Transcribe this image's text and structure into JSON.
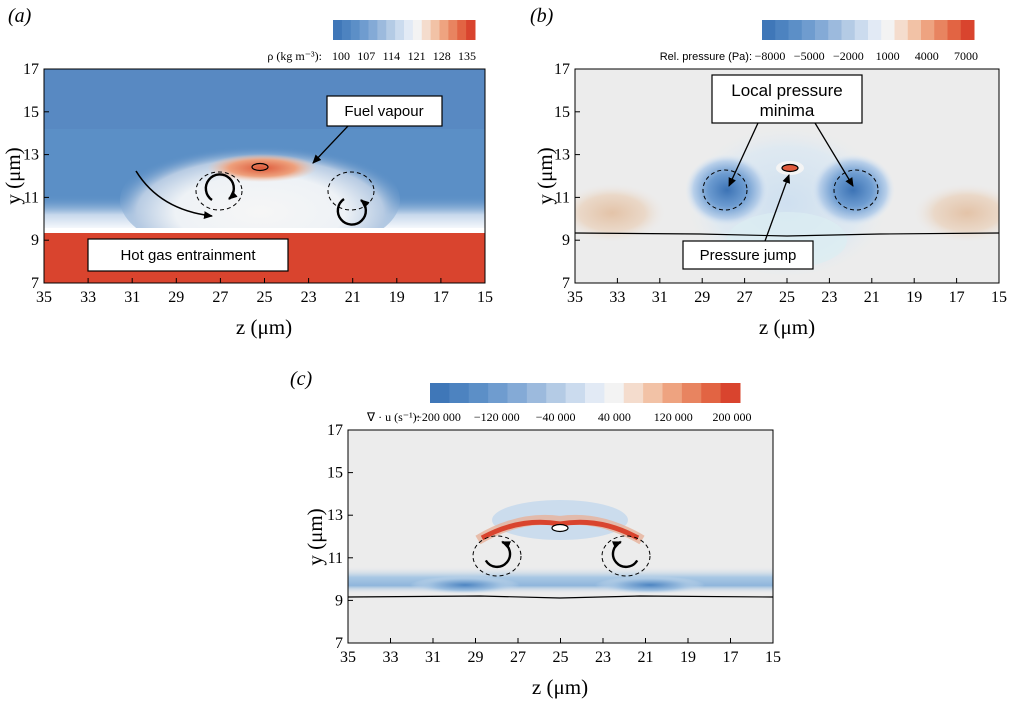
{
  "panels": [
    {
      "label": "(a)",
      "xlabel": "z (μm)",
      "ylabel": "y (μm)",
      "colorbar": {
        "label": "ρ (kg m⁻³):",
        "ticks": [
          "100",
          "107",
          "114",
          "121",
          "128",
          "135"
        ],
        "colors": [
          "#3f77b8",
          "#4d83c0",
          "#5c8fc7",
          "#6f9ccf",
          "#84aad6",
          "#9cbadd",
          "#b4cbe5",
          "#cbdbee",
          "#e2eaf5",
          "#f3f3f3",
          "#f4dccd",
          "#f2c2a6",
          "#eea380",
          "#e88460",
          "#e26443",
          "#d9442e"
        ]
      },
      "annotations": {
        "fuel": "Fuel vapour",
        "hot_gas": "Hot gas entrainment"
      }
    },
    {
      "label": "(b)",
      "xlabel": "z (μm)",
      "ylabel": "y (μm)",
      "colorbar": {
        "label": "Rel. pressure (Pa):",
        "ticks": [
          "−8000",
          "−5000",
          "−2000",
          "1000",
          "4000",
          "7000"
        ],
        "colors": [
          "#3f77b8",
          "#4d83c0",
          "#5c8fc7",
          "#6f9ccf",
          "#84aad6",
          "#9cbadd",
          "#b4cbe5",
          "#cbdbee",
          "#e2eaf5",
          "#f3f3f3",
          "#f4dccd",
          "#f2c2a6",
          "#eea380",
          "#e88460",
          "#e26443",
          "#d9442e"
        ]
      },
      "annotations": {
        "minima_line1": "Local pressure",
        "minima_line2": "minima",
        "jump": "Pressure jump"
      }
    },
    {
      "label": "(c)",
      "xlabel": "z (μm)",
      "ylabel": "y (μm)",
      "colorbar": {
        "label": "∇ · u (s⁻¹):",
        "ticks": [
          "−200 000",
          "−120 000",
          "−40 000",
          "40 000",
          "120 000",
          "200 000"
        ],
        "colors": [
          "#3f77b8",
          "#4d83c0",
          "#5c8fc7",
          "#6f9ccf",
          "#84aad6",
          "#9cbadd",
          "#b4cbe5",
          "#cbdbee",
          "#e2eaf5",
          "#f3f3f3",
          "#f4dccd",
          "#f2c2a6",
          "#eea380",
          "#e88460",
          "#e26443",
          "#d9442e"
        ]
      }
    }
  ],
  "axes": {
    "x_ticks": [
      "35",
      "33",
      "31",
      "29",
      "27",
      "25",
      "23",
      "21",
      "19",
      "17",
      "15"
    ],
    "y_ticks": [
      "7",
      "9",
      "11",
      "13",
      "15",
      "17"
    ],
    "x_range": [
      35,
      15
    ],
    "y_range": [
      7,
      17
    ]
  },
  "colors": {
    "blue_bg": "#5b8fc6",
    "hot_red": "#d9442e",
    "grey_bg": "#ececec"
  }
}
